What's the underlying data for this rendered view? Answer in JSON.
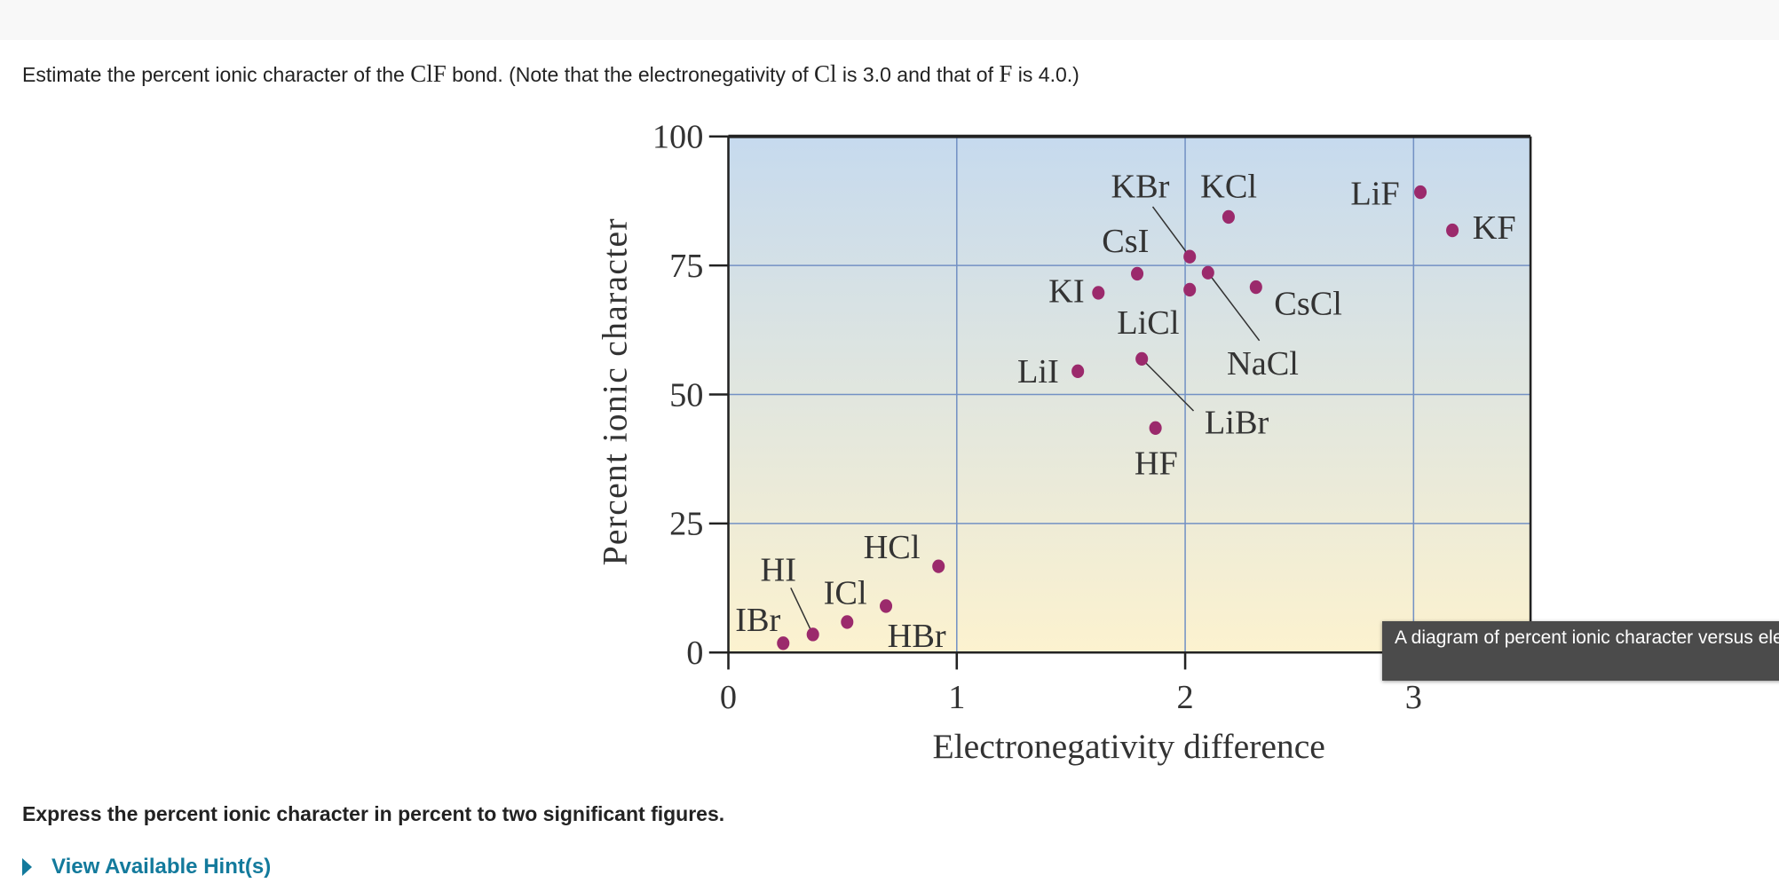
{
  "question": {
    "pre": "Estimate the percent ionic character of the ",
    "bond": "ClF",
    "mid1": " bond. (Note that the electronegativity of ",
    "el1": "Cl",
    "mid2": " is 3.0 and that of ",
    "el2": "F",
    "post": " is 4.0.)"
  },
  "instruction": "Express the percent ionic character in percent to two significant figures.",
  "hint_link": "View Available Hint(s)",
  "tooltip": "A diagram of percent ionic character versus electronegativity difference",
  "colors": {
    "point": "#9b2a6c",
    "grid": "#7391c4",
    "bg_top": "#c6daee",
    "bg_bottom": "#fcf2cf",
    "link": "#137a9c"
  },
  "chart_data": {
    "type": "scatter",
    "xlabel": "Electronegativity difference",
    "ylabel": "Percent ionic character",
    "xlim": [
      0,
      3.5
    ],
    "ylim": [
      0,
      100
    ],
    "xticks": [
      "0",
      "1",
      "2",
      "3"
    ],
    "yticks": [
      "0",
      "25",
      "50",
      "75",
      "100"
    ],
    "grid": true,
    "points": [
      {
        "label": "IBr",
        "x": 0.24,
        "y": 1.8
      },
      {
        "label": "HI",
        "x": 0.37,
        "y": 3.5
      },
      {
        "label": "ICl",
        "x": 0.52,
        "y": 5.9
      },
      {
        "label": "HBr",
        "x": 0.69,
        "y": 9.0
      },
      {
        "label": "HCl",
        "x": 0.92,
        "y": 16.7
      },
      {
        "label": "LiI",
        "x": 1.53,
        "y": 54.5
      },
      {
        "label": "KI",
        "x": 1.62,
        "y": 69.7
      },
      {
        "label": "CsI",
        "x": 1.79,
        "y": 73.4
      },
      {
        "label": "LiBr",
        "x": 1.81,
        "y": 56.9
      },
      {
        "label": "HF",
        "x": 1.87,
        "y": 43.5
      },
      {
        "label": "LiCl",
        "x": 2.02,
        "y": 70.3
      },
      {
        "label": "KBr",
        "x": 2.02,
        "y": 76.7
      },
      {
        "label": "NaCl",
        "x": 2.1,
        "y": 73.6
      },
      {
        "label": "KCl",
        "x": 2.19,
        "y": 84.4
      },
      {
        "label": "CsCl",
        "x": 2.31,
        "y": 70.8
      },
      {
        "label": "LiF",
        "x": 3.03,
        "y": 89.2
      },
      {
        "label": "KF",
        "x": 3.17,
        "y": 81.8
      }
    ]
  }
}
